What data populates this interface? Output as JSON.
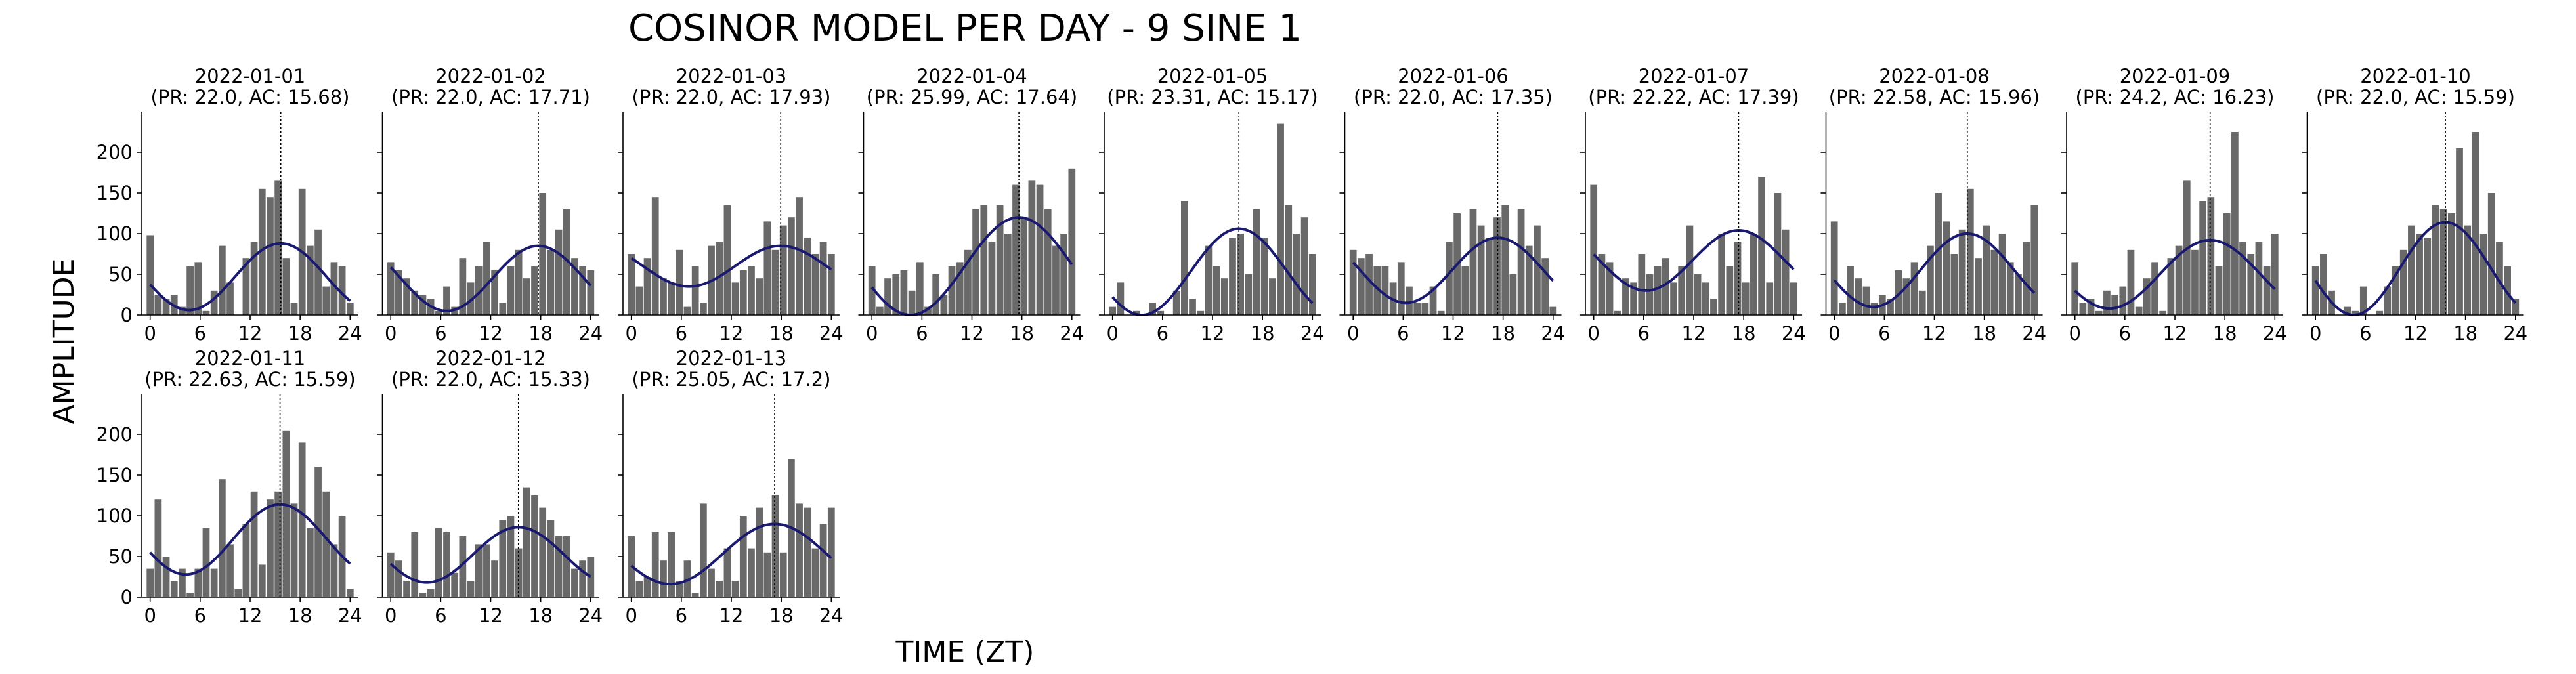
{
  "figure": {
    "title": "COSINOR MODEL PER DAY - 9 SINE 1",
    "xlabel": "TIME (ZT)",
    "ylabel": "AMPLITUDE"
  },
  "colors": {
    "bars": "#696969",
    "fit_line": "#191970",
    "acrophase_line": "#000000",
    "axes": "#000000",
    "background": "#ffffff"
  },
  "chart_data": {
    "type": "bar",
    "overlay": "line",
    "x_ticks": [
      0,
      6,
      12,
      18,
      24
    ],
    "y_ticks": [
      0,
      50,
      100,
      150,
      200
    ],
    "xlim": [
      -1,
      25
    ],
    "ylim": [
      0,
      250
    ],
    "shared_y": true,
    "grid": false,
    "legend": "none",
    "panels": [
      {
        "date": "2022-01-01",
        "subtitle": "(PR: 22.0, AC: 15.68)",
        "period": 22.0,
        "acrophase": 15.68,
        "fit": {
          "mesor": 47,
          "amplitude": 41
        },
        "bars": [
          98,
          25,
          20,
          25,
          10,
          60,
          65,
          5,
          30,
          85,
          40,
          0,
          70,
          90,
          155,
          145,
          165,
          70,
          15,
          155,
          85,
          105,
          35,
          65,
          60,
          15
        ]
      },
      {
        "date": "2022-01-02",
        "subtitle": "(PR: 22.0, AC: 17.71)",
        "period": 22.0,
        "acrophase": 17.71,
        "fit": {
          "mesor": 45,
          "amplitude": 40
        },
        "bars": [
          65,
          55,
          45,
          30,
          25,
          20,
          5,
          35,
          10,
          70,
          40,
          60,
          90,
          55,
          15,
          60,
          80,
          45,
          60,
          150,
          80,
          105,
          130,
          70,
          60,
          55
        ]
      },
      {
        "date": "2022-01-03",
        "subtitle": "(PR: 22.0, AC: 17.93)",
        "period": 22.0,
        "acrophase": 17.93,
        "fit": {
          "mesor": 60,
          "amplitude": 25
        },
        "bars": [
          75,
          35,
          70,
          145,
          45,
          40,
          80,
          10,
          60,
          15,
          85,
          90,
          135,
          40,
          55,
          60,
          45,
          115,
          80,
          110,
          120,
          145,
          95,
          75,
          90,
          75
        ]
      },
      {
        "date": "2022-01-04",
        "subtitle": "(PR: 25.99, AC: 17.64)",
        "period": 25.99,
        "acrophase": 17.64,
        "fit": {
          "mesor": 60,
          "amplitude": 60
        },
        "bars": [
          60,
          10,
          45,
          50,
          55,
          30,
          65,
          10,
          50,
          25,
          60,
          65,
          80,
          130,
          135,
          90,
          135,
          100,
          160,
          120,
          165,
          160,
          130,
          85,
          100,
          180
        ]
      },
      {
        "date": "2022-01-05",
        "subtitle": "(PR: 23.31, AC: 15.17)",
        "period": 23.31,
        "acrophase": 15.17,
        "fit": {
          "mesor": 53,
          "amplitude": 53
        },
        "bars": [
          10,
          40,
          0,
          5,
          0,
          15,
          5,
          0,
          30,
          140,
          20,
          5,
          85,
          60,
          45,
          95,
          100,
          50,
          130,
          95,
          45,
          235,
          135,
          100,
          120,
          75
        ]
      },
      {
        "date": "2022-01-06",
        "subtitle": "(PR: 22.0, AC: 17.35)",
        "period": 22.0,
        "acrophase": 17.35,
        "fit": {
          "mesor": 55,
          "amplitude": 40
        },
        "bars": [
          80,
          70,
          75,
          60,
          60,
          40,
          65,
          35,
          15,
          15,
          35,
          5,
          90,
          125,
          60,
          130,
          110,
          95,
          120,
          135,
          50,
          130,
          85,
          110,
          70,
          10
        ]
      },
      {
        "date": "2022-01-07",
        "subtitle": "(PR: 22.22, AC: 17.39)",
        "period": 22.22,
        "acrophase": 17.39,
        "fit": {
          "mesor": 67,
          "amplitude": 37
        },
        "bars": [
          160,
          75,
          65,
          5,
          45,
          40,
          75,
          50,
          60,
          70,
          40,
          60,
          110,
          50,
          40,
          20,
          100,
          60,
          90,
          40,
          100,
          170,
          40,
          150,
          105,
          40
        ]
      },
      {
        "date": "2022-01-08",
        "subtitle": "(PR: 22.58, AC: 15.96)",
        "period": 22.58,
        "acrophase": 15.96,
        "fit": {
          "mesor": 55,
          "amplitude": 45
        },
        "bars": [
          115,
          15,
          60,
          45,
          35,
          15,
          25,
          20,
          55,
          45,
          65,
          30,
          85,
          150,
          115,
          75,
          105,
          155,
          70,
          110,
          80,
          100,
          65,
          50,
          90,
          135
        ]
      },
      {
        "date": "2022-01-09",
        "subtitle": "(PR: 24.2, AC: 16.23)",
        "period": 24.2,
        "acrophase": 16.23,
        "fit": {
          "mesor": 50,
          "amplitude": 42
        },
        "bars": [
          65,
          15,
          20,
          5,
          30,
          25,
          35,
          80,
          10,
          45,
          65,
          5,
          70,
          85,
          165,
          80,
          140,
          145,
          60,
          125,
          225,
          90,
          75,
          90,
          60,
          100
        ]
      },
      {
        "date": "2022-01-10",
        "subtitle": "(PR: 22.0, AC: 15.59)",
        "period": 22.0,
        "acrophase": 15.59,
        "fit": {
          "mesor": 57,
          "amplitude": 57
        },
        "bars": [
          60,
          75,
          30,
          0,
          10,
          5,
          35,
          0,
          5,
          35,
          60,
          80,
          110,
          100,
          95,
          135,
          130,
          125,
          205,
          110,
          225,
          100,
          150,
          90,
          60,
          20
        ]
      },
      {
        "date": "2022-01-11",
        "subtitle": "(PR: 22.63, AC: 15.59)",
        "period": 22.63,
        "acrophase": 15.59,
        "fit": {
          "mesor": 71,
          "amplitude": 43
        },
        "bars": [
          35,
          120,
          50,
          20,
          35,
          5,
          35,
          85,
          35,
          145,
          65,
          10,
          90,
          130,
          40,
          120,
          130,
          205,
          115,
          190,
          85,
          160,
          130,
          65,
          100,
          10
        ]
      },
      {
        "date": "2022-01-12",
        "subtitle": "(PR: 22.0, AC: 15.33)",
        "period": 22.0,
        "acrophase": 15.33,
        "fit": {
          "mesor": 52,
          "amplitude": 34
        },
        "bars": [
          55,
          45,
          20,
          80,
          5,
          10,
          85,
          80,
          30,
          75,
          20,
          65,
          65,
          45,
          95,
          100,
          60,
          135,
          125,
          110,
          95,
          75,
          75,
          35,
          45,
          50
        ]
      },
      {
        "date": "2022-01-13",
        "subtitle": "(PR: 25.05, AC: 17.2)",
        "period": 25.05,
        "acrophase": 17.2,
        "fit": {
          "mesor": 53,
          "amplitude": 37
        },
        "bars": [
          75,
          20,
          25,
          80,
          45,
          80,
          20,
          45,
          5,
          115,
          35,
          20,
          60,
          20,
          100,
          60,
          110,
          55,
          125,
          55,
          170,
          115,
          110,
          60,
          90,
          110
        ]
      }
    ]
  }
}
